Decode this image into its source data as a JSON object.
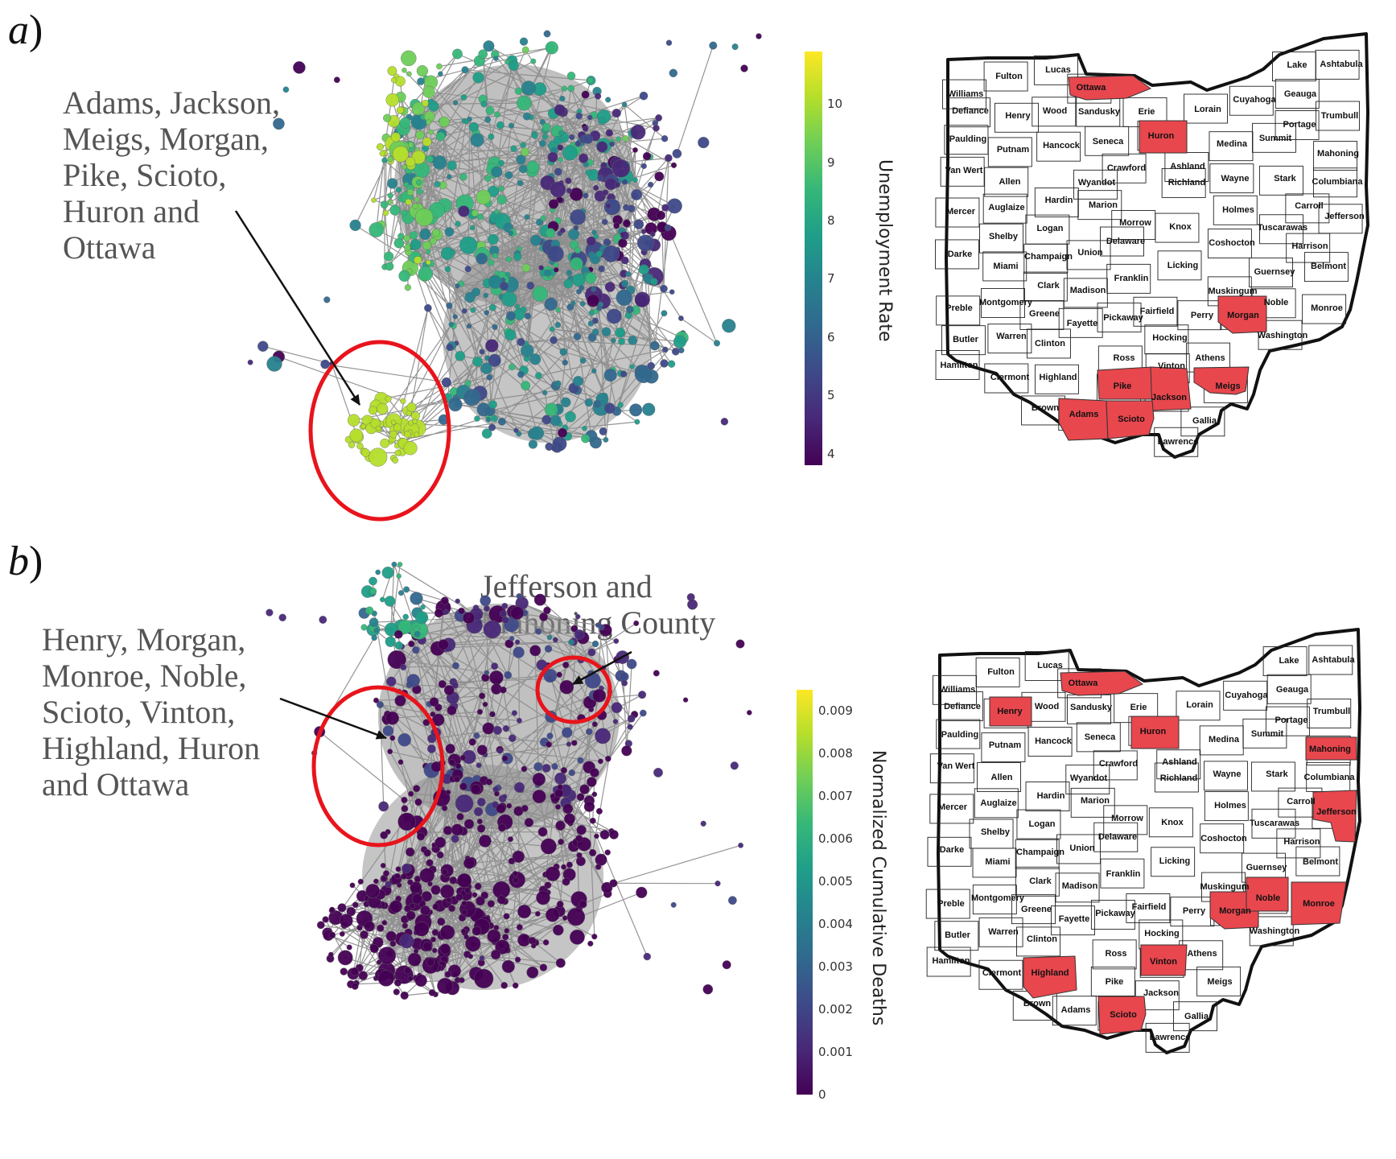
{
  "panels": [
    {
      "label": "a",
      "annotation": "Adams, Jackson,\nMeigs, Morgan,\nPike, Scioto,\nHuron and\nOttawa",
      "colorbar": {
        "title": "Unemployment Rate",
        "ticks": [
          "4",
          "5",
          "6",
          "7",
          "8",
          "9",
          "10"
        ],
        "range": [
          3.8,
          10.9
        ]
      },
      "highlighted_counties": [
        "Ottawa",
        "Huron",
        "Morgan",
        "Meigs",
        "Pike",
        "Jackson",
        "Adams",
        "Scioto"
      ]
    },
    {
      "label": "b",
      "annotation_left": "Henry, Morgan,\nMonroe, Noble,\nScioto, Vinton,\nHighland, Huron\nand Ottawa",
      "annotation_top": "Jefferson and\nMahoning County",
      "colorbar": {
        "title": "Normalized Cumulative Deaths",
        "ticks": [
          "0",
          "0.001",
          "0.002",
          "0.003",
          "0.004",
          "0.005",
          "0.006",
          "0.007",
          "0.008",
          "0.009"
        ],
        "range": [
          0,
          0.0095
        ]
      },
      "highlighted_counties": [
        "Ottawa",
        "Henry",
        "Huron",
        "Mahoning",
        "Jefferson",
        "Morgan",
        "Noble",
        "Monroe",
        "Vinton",
        "Highland",
        "Scioto"
      ]
    }
  ],
  "ohio_counties": [
    "Fulton",
    "Lucas",
    "Lake",
    "Ashtabula",
    "Williams",
    "Ottawa",
    "Geauga",
    "Defiance",
    "Henry",
    "Wood",
    "Sandusky",
    "Erie",
    "Lorain",
    "Cuyahoga",
    "Trumbull",
    "Portage",
    "Paulding",
    "Putnam",
    "Hancock",
    "Seneca",
    "Huron",
    "Medina",
    "Summit",
    "Mahoning",
    "Van Wert",
    "Allen",
    "Wyandot",
    "Crawford",
    "Ashland",
    "Richland",
    "Wayne",
    "Stark",
    "Columbiana",
    "Mercer",
    "Auglaize",
    "Hardin",
    "Marion",
    "Carroll",
    "Jefferson",
    "Morrow",
    "Holmes",
    "Tuscarawas",
    "Shelby",
    "Logan",
    "Knox",
    "Delaware",
    "Coshocton",
    "Harrison",
    "Darke",
    "Champaign",
    "Union",
    "Licking",
    "Belmont",
    "Miami",
    "Guernsey",
    "Franklin",
    "Clark",
    "Madison",
    "Muskingum",
    "Preble",
    "Montgomery",
    "Noble",
    "Monroe",
    "Greene",
    "Fairfield",
    "Perry",
    "Morgan",
    "Fayette",
    "Pickaway",
    "Washington",
    "Butler",
    "Warren",
    "Clinton",
    "Hocking",
    "Athens",
    "Hamilton",
    "Ross",
    "Vinton",
    "Clermont",
    "Highland",
    "Meigs",
    "Pike",
    "Jackson",
    "Brown",
    "Adams",
    "Scioto",
    "Gallia",
    "Lawrence"
  ],
  "colors": {
    "highlight": "#e8474e",
    "annotation_circle": "#e8141c",
    "edge": "#8a8a8a",
    "viridis": [
      "#440154",
      "#482878",
      "#3e4989",
      "#31688e",
      "#26828e",
      "#1f9e89",
      "#35b779",
      "#6ece58",
      "#b5de2b",
      "#fde725"
    ]
  }
}
